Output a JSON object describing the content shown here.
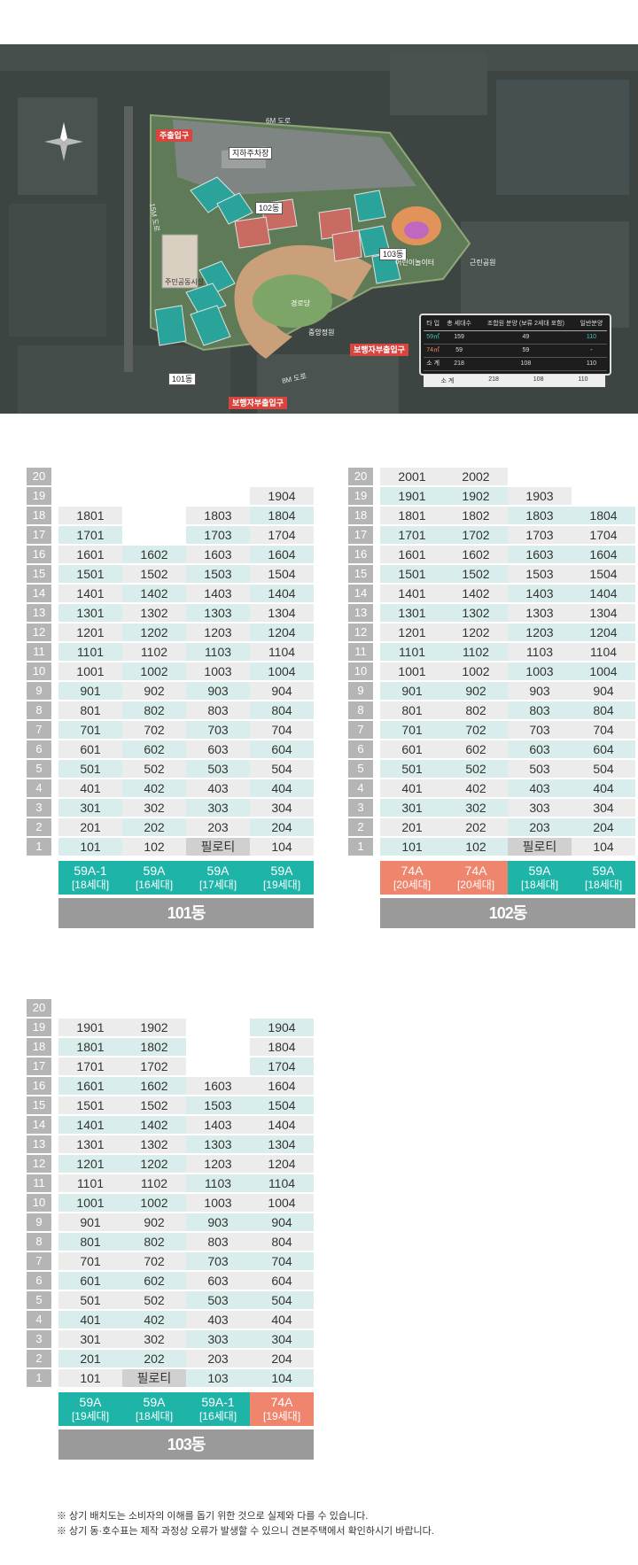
{
  "sitemap": {
    "labels": {
      "main_entrance": "주출입구",
      "parking": "지하주차장",
      "road_top": "6M 도로",
      "road_left": "15M 도로",
      "road_bottom": "8M 도로",
      "ped_entrance_1": "보행자부출입구",
      "ped_entrance_2": "보행자부출입구",
      "bldg_101": "101동",
      "bldg_102": "102동",
      "bldg_103": "103동",
      "pavilion": "경로당",
      "community": "주민공동시설",
      "garden": "중앙정원",
      "playground": "어린이놀이터",
      "gym": "근린공원"
    },
    "legend": {
      "headers": [
        "타 입",
        "총 세대수",
        "조합원 분양\n(보류 2세대 포함)",
        "일반분양"
      ],
      "rows": [
        {
          "type": "59㎡",
          "total": "159",
          "member": "49",
          "general": "110"
        },
        {
          "type": "74㎡",
          "total": "59",
          "member": "59",
          "general": "-"
        },
        {
          "type": "소 계",
          "total": "218",
          "member": "108",
          "general": "110"
        }
      ],
      "subtotal": {
        "type": "소 계",
        "total": "218",
        "member": "108",
        "general": "110"
      }
    }
  },
  "floors": [
    "20",
    "19",
    "18",
    "17",
    "16",
    "15",
    "14",
    "13",
    "12",
    "11",
    "10",
    "9",
    "8",
    "7",
    "6",
    "5",
    "4",
    "3",
    "2",
    "1"
  ],
  "buildings": [
    {
      "name": "101동",
      "columns": [
        {
          "type": "59A-1",
          "count": "[18세대]",
          "color": "teal"
        },
        {
          "type": "59A",
          "count": "[16세대]",
          "color": "teal"
        },
        {
          "type": "59A",
          "count": "[17세대]",
          "color": "teal"
        },
        {
          "type": "59A",
          "count": "[19세대]",
          "color": "teal"
        }
      ]
    },
    {
      "name": "102동",
      "columns": [
        {
          "type": "74A",
          "count": "[20세대]",
          "color": "salmon"
        },
        {
          "type": "74A",
          "count": "[20세대]",
          "color": "salmon"
        },
        {
          "type": "59A",
          "count": "[18세대]",
          "color": "teal"
        },
        {
          "type": "59A",
          "count": "[18세대]",
          "color": "teal"
        }
      ]
    },
    {
      "name": "103동",
      "columns": [
        {
          "type": "59A",
          "count": "[19세대]",
          "color": "teal"
        },
        {
          "type": "59A",
          "count": "[18세대]",
          "color": "teal"
        },
        {
          "type": "59A-1",
          "count": "[16세대]",
          "color": "teal"
        },
        {
          "type": "74A",
          "count": "[19세대]",
          "color": "salmon"
        }
      ]
    }
  ],
  "pilotis_label": "필로티",
  "notes": [
    "※ 상기 배치도는 소비자의 이해를 돕기 위한 것으로 실제와 다를 수 있습니다.",
    "※ 상기 동·호수표는 제작 과정상 오류가 발생할 수 있으니 견본주택에서 확인하시기 바랍니다."
  ],
  "colors": {
    "teal": "#1eb5a8",
    "salmon": "#f0856e",
    "cell_teal": "#d9eeec",
    "cell_gray": "#ececec",
    "building_bar": "#9a9a9a"
  }
}
